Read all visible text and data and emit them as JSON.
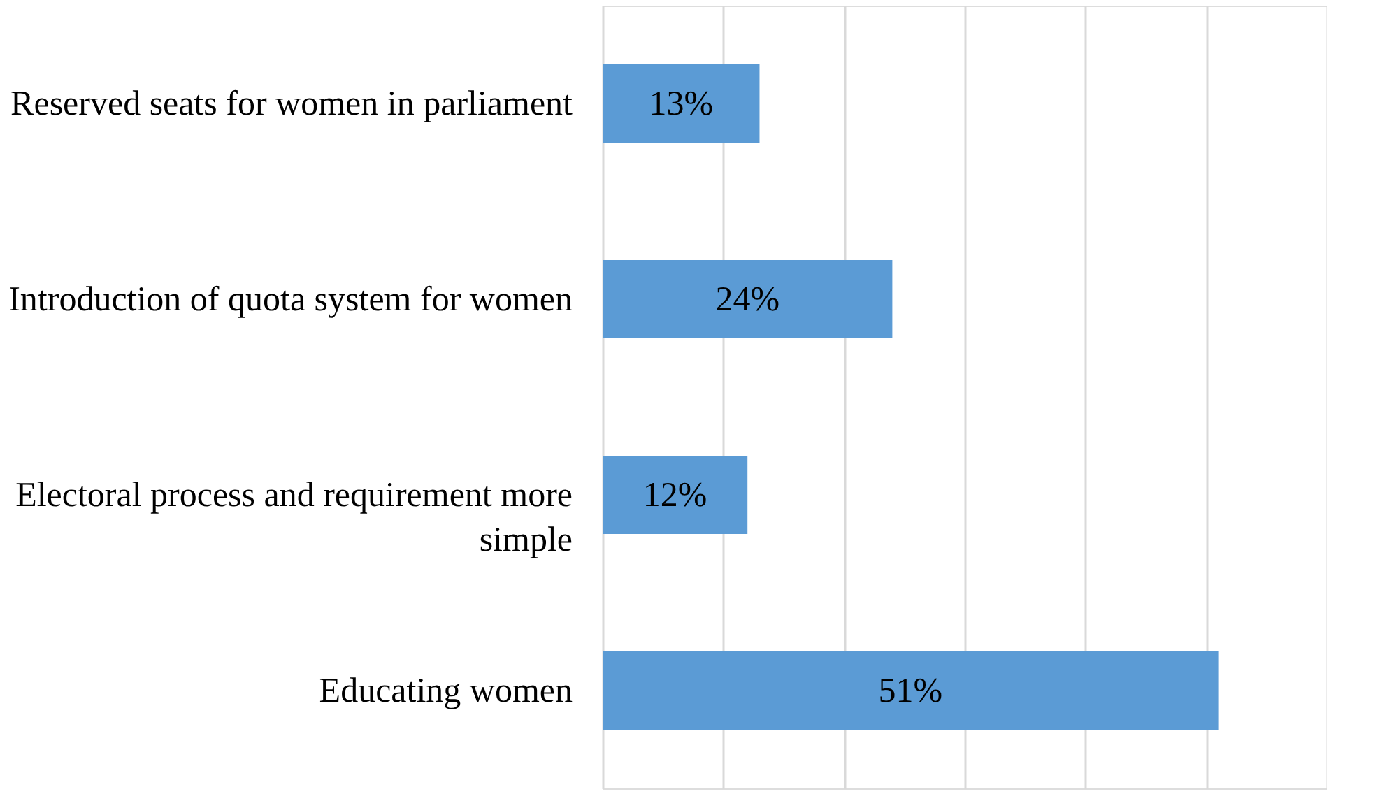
{
  "chart_data": {
    "type": "bar",
    "orientation": "horizontal",
    "categories": [
      "Reserved seats for women in parliament",
      "Introduction of quota system for women",
      "Electoral process and requirement more simple",
      "Educating women"
    ],
    "values": [
      13,
      24,
      12,
      51
    ],
    "value_labels": [
      "13%",
      "24%",
      "12%",
      "51%"
    ],
    "color": "#5b9bd5",
    "xlim": [
      0,
      60
    ],
    "xticks": [
      {
        "value": 0,
        "label": null
      },
      {
        "value": 10,
        "label": null
      },
      {
        "value": 20,
        "label": null
      },
      {
        "value": 30,
        "label": null
      },
      {
        "value": 40,
        "label": null
      },
      {
        "value": 50,
        "label": null
      },
      {
        "value": 60,
        "label": null
      }
    ],
    "grid": "x",
    "tick_labels": "y"
  }
}
